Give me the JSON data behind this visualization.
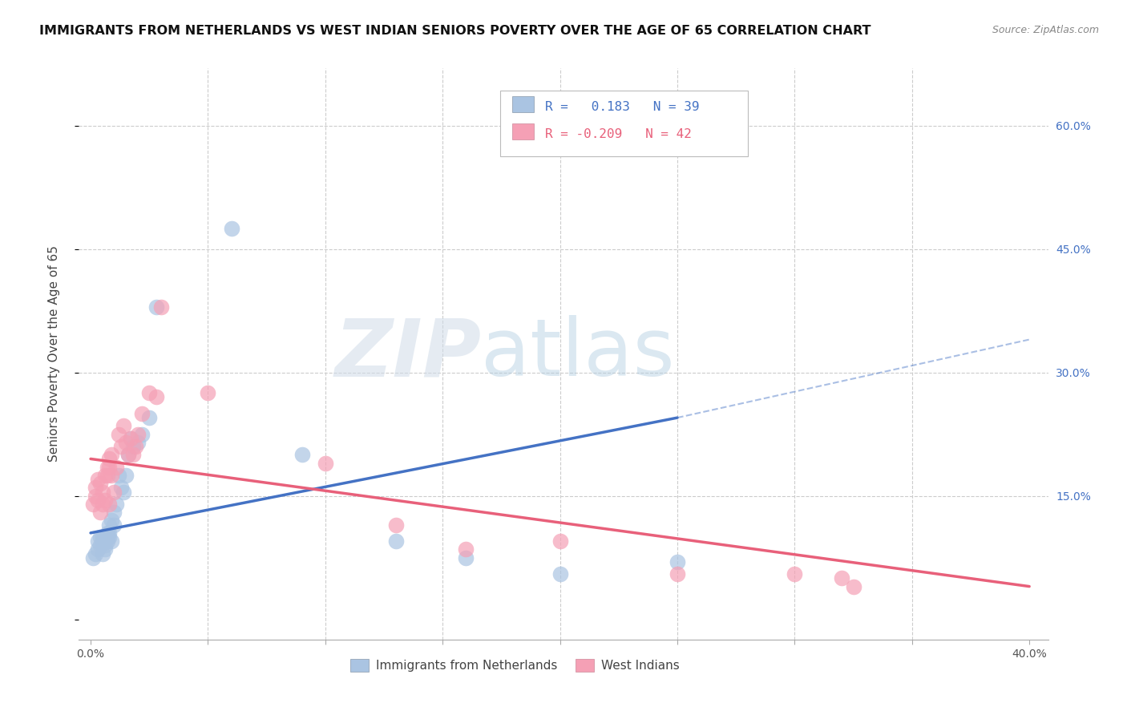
{
  "title": "IMMIGRANTS FROM NETHERLANDS VS WEST INDIAN SENIORS POVERTY OVER THE AGE OF 65 CORRELATION CHART",
  "source": "Source: ZipAtlas.com",
  "ylabel": "Seniors Poverty Over the Age of 65",
  "x_min": 0.0,
  "x_max": 0.4,
  "y_min": 0.0,
  "y_max": 0.65,
  "legend_label1": "Immigrants from Netherlands",
  "legend_label2": "West Indians",
  "r1": 0.183,
  "n1": 39,
  "r2": -0.209,
  "n2": 42,
  "color1": "#aac4e2",
  "color2": "#f5a0b5",
  "trendline1_color": "#4472c4",
  "trendline2_color": "#e8607a",
  "blue_x": [
    0.001,
    0.002,
    0.003,
    0.003,
    0.004,
    0.004,
    0.005,
    0.005,
    0.005,
    0.006,
    0.006,
    0.007,
    0.007,
    0.007,
    0.008,
    0.008,
    0.008,
    0.009,
    0.009,
    0.01,
    0.01,
    0.011,
    0.012,
    0.013,
    0.014,
    0.015,
    0.016,
    0.017,
    0.018,
    0.02,
    0.022,
    0.025,
    0.028,
    0.06,
    0.09,
    0.13,
    0.16,
    0.2,
    0.25
  ],
  "blue_y": [
    0.075,
    0.08,
    0.085,
    0.095,
    0.09,
    0.1,
    0.08,
    0.095,
    0.1,
    0.085,
    0.09,
    0.1,
    0.095,
    0.105,
    0.1,
    0.115,
    0.105,
    0.095,
    0.12,
    0.115,
    0.13,
    0.14,
    0.175,
    0.16,
    0.155,
    0.175,
    0.2,
    0.22,
    0.21,
    0.215,
    0.225,
    0.245,
    0.38,
    0.475,
    0.2,
    0.095,
    0.075,
    0.055,
    0.07
  ],
  "pink_x": [
    0.001,
    0.002,
    0.002,
    0.003,
    0.003,
    0.004,
    0.004,
    0.005,
    0.005,
    0.006,
    0.006,
    0.007,
    0.007,
    0.008,
    0.008,
    0.008,
    0.009,
    0.009,
    0.01,
    0.011,
    0.012,
    0.013,
    0.014,
    0.015,
    0.016,
    0.017,
    0.018,
    0.019,
    0.02,
    0.022,
    0.025,
    0.028,
    0.03,
    0.05,
    0.1,
    0.13,
    0.16,
    0.2,
    0.25,
    0.3,
    0.32,
    0.325
  ],
  "pink_y": [
    0.14,
    0.16,
    0.15,
    0.145,
    0.17,
    0.165,
    0.13,
    0.155,
    0.14,
    0.145,
    0.175,
    0.175,
    0.185,
    0.195,
    0.185,
    0.14,
    0.2,
    0.175,
    0.155,
    0.185,
    0.225,
    0.21,
    0.235,
    0.215,
    0.2,
    0.22,
    0.2,
    0.21,
    0.225,
    0.25,
    0.275,
    0.27,
    0.38,
    0.275,
    0.19,
    0.115,
    0.085,
    0.095,
    0.055,
    0.055,
    0.05,
    0.04
  ],
  "blue_line_x0": 0.0,
  "blue_line_y0": 0.105,
  "blue_line_x_solid_end": 0.25,
  "blue_line_y_solid_end": 0.245,
  "blue_line_x_dash_end": 0.4,
  "blue_line_y_dash_end": 0.34,
  "pink_line_x0": 0.0,
  "pink_line_y0": 0.195,
  "pink_line_x_end": 0.4,
  "pink_line_y_end": 0.04
}
